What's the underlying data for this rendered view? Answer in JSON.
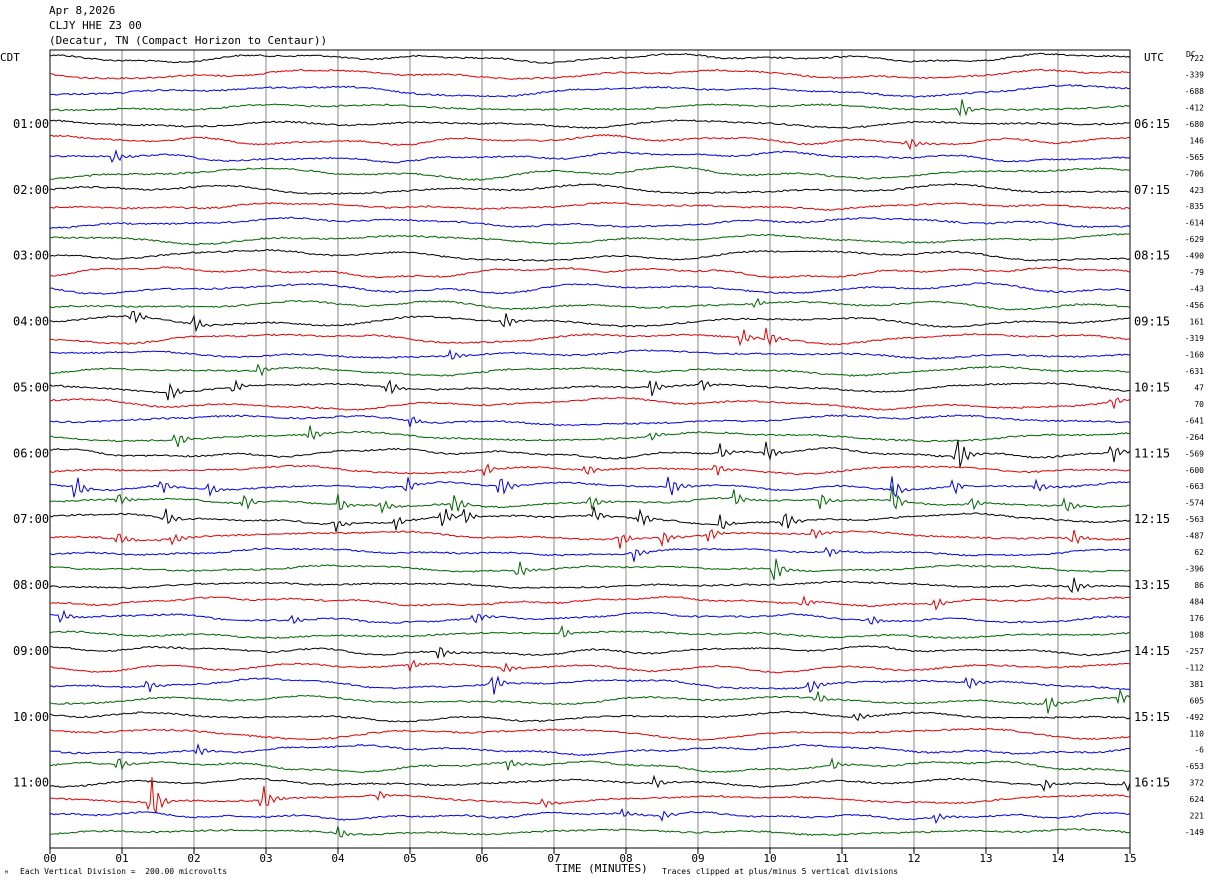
{
  "header": {
    "date": "Apr 8,2026",
    "station": "CLJY HHE Z3 00",
    "location": "(Decatur, TN (Compact Horizon to Centaur))"
  },
  "chart_data": {
    "type": "line",
    "title": "",
    "xlabel": "TIME (MINUTES)",
    "ylabel_left": "CDT",
    "ylabel_right": "UTC",
    "dc_label": "DC",
    "xlim": [
      0,
      15
    ],
    "x_ticks": [
      "00",
      "01",
      "02",
      "03",
      "04",
      "05",
      "06",
      "07",
      "08",
      "09",
      "10",
      "11",
      "12",
      "13",
      "14",
      "15"
    ],
    "trace_count": 48,
    "trace_colors": [
      "#000000",
      "#e00000",
      "#0000e0",
      "#006400"
    ],
    "left_time_labels": [
      {
        "trace": 4,
        "label": "01:00"
      },
      {
        "trace": 8,
        "label": "02:00"
      },
      {
        "trace": 12,
        "label": "03:00"
      },
      {
        "trace": 16,
        "label": "04:00"
      },
      {
        "trace": 20,
        "label": "05:00"
      },
      {
        "trace": 24,
        "label": "06:00"
      },
      {
        "trace": 28,
        "label": "07:00"
      },
      {
        "trace": 32,
        "label": "08:00"
      },
      {
        "trace": 36,
        "label": "09:00"
      },
      {
        "trace": 40,
        "label": "10:00"
      },
      {
        "trace": 44,
        "label": "11:00"
      }
    ],
    "right_time_labels": [
      {
        "trace": 4,
        "label": "06:15"
      },
      {
        "trace": 8,
        "label": "07:15"
      },
      {
        "trace": 12,
        "label": "08:15"
      },
      {
        "trace": 16,
        "label": "09:15"
      },
      {
        "trace": 20,
        "label": "10:15"
      },
      {
        "trace": 24,
        "label": "11:15"
      },
      {
        "trace": 28,
        "label": "12:15"
      },
      {
        "trace": 32,
        "label": "13:15"
      },
      {
        "trace": 36,
        "label": "14:15"
      },
      {
        "trace": 40,
        "label": "15:15"
      },
      {
        "trace": 44,
        "label": "16:15"
      }
    ],
    "dc_offsets": [
      "722",
      "-339",
      "-688",
      "-412",
      "-680",
      "146",
      "-565",
      "-706",
      "423",
      "-835",
      "-614",
      "-629",
      "-490",
      "-79",
      "-43",
      "-456",
      "161",
      "-319",
      "-160",
      "-631",
      "47",
      "70",
      "-641",
      "-264",
      "-569",
      "-600",
      "-663",
      "-574",
      "-563",
      "-487",
      "62",
      "-396",
      "86",
      "484",
      "176",
      "108",
      "-257",
      "-112",
      "381",
      "605",
      "-492",
      "110",
      "-6",
      "-653",
      "372",
      "624",
      "221",
      "-149"
    ],
    "events": [
      {
        "trace": 3,
        "t": 12.65,
        "amp": 1.2
      },
      {
        "trace": 5,
        "t": 11.93,
        "amp": 0.8
      },
      {
        "trace": 6,
        "t": 0.88,
        "amp": 0.9
      },
      {
        "trace": 15,
        "t": 9.8,
        "amp": 0.6
      },
      {
        "trace": 16,
        "t": 1.15,
        "amp": 1.0
      },
      {
        "trace": 16,
        "t": 2.0,
        "amp": 1.1
      },
      {
        "trace": 16,
        "t": 6.3,
        "amp": 1.1
      },
      {
        "trace": 17,
        "t": 9.6,
        "amp": 1.2
      },
      {
        "trace": 17,
        "t": 9.95,
        "amp": 1.2
      },
      {
        "trace": 18,
        "t": 5.55,
        "amp": 0.7
      },
      {
        "trace": 19,
        "t": 2.9,
        "amp": 0.8
      },
      {
        "trace": 20,
        "t": 1.65,
        "amp": 1.2
      },
      {
        "trace": 20,
        "t": 2.55,
        "amp": 0.9
      },
      {
        "trace": 20,
        "t": 4.7,
        "amp": 1.1
      },
      {
        "trace": 20,
        "t": 8.35,
        "amp": 1.2
      },
      {
        "trace": 20,
        "t": 9.05,
        "amp": 0.8
      },
      {
        "trace": 21,
        "t": 14.75,
        "amp": 0.8
      },
      {
        "trace": 22,
        "t": 5.0,
        "amp": 0.7
      },
      {
        "trace": 23,
        "t": 1.75,
        "amp": 1.0
      },
      {
        "trace": 23,
        "t": 3.6,
        "amp": 1.0
      },
      {
        "trace": 23,
        "t": 8.35,
        "amp": 0.6
      },
      {
        "trace": 24,
        "t": 9.3,
        "amp": 1.0
      },
      {
        "trace": 24,
        "t": 9.95,
        "amp": 1.2
      },
      {
        "trace": 24,
        "t": 12.6,
        "amp": 2.3
      },
      {
        "trace": 24,
        "t": 14.75,
        "amp": 1.3
      },
      {
        "trace": 25,
        "t": 6.05,
        "amp": 0.8
      },
      {
        "trace": 25,
        "t": 7.45,
        "amp": 0.7
      },
      {
        "trace": 25,
        "t": 9.25,
        "amp": 0.9
      },
      {
        "trace": 26,
        "t": 0.35,
        "amp": 1.5
      },
      {
        "trace": 26,
        "t": 1.55,
        "amp": 0.9
      },
      {
        "trace": 26,
        "t": 2.2,
        "amp": 0.9
      },
      {
        "trace": 26,
        "t": 4.95,
        "amp": 1.0
      },
      {
        "trace": 26,
        "t": 6.25,
        "amp": 1.3
      },
      {
        "trace": 26,
        "t": 8.6,
        "amp": 1.4
      },
      {
        "trace": 26,
        "t": 11.7,
        "amp": 1.5
      },
      {
        "trace": 26,
        "t": 12.55,
        "amp": 1.0
      },
      {
        "trace": 26,
        "t": 13.7,
        "amp": 0.7
      },
      {
        "trace": 27,
        "t": 0.95,
        "amp": 0.8
      },
      {
        "trace": 27,
        "t": 2.7,
        "amp": 1.0
      },
      {
        "trace": 27,
        "t": 4.0,
        "amp": 1.2
      },
      {
        "trace": 27,
        "t": 4.6,
        "amp": 0.8
      },
      {
        "trace": 27,
        "t": 5.6,
        "amp": 1.3
      },
      {
        "trace": 27,
        "t": 7.5,
        "amp": 1.0
      },
      {
        "trace": 27,
        "t": 9.5,
        "amp": 1.0
      },
      {
        "trace": 27,
        "t": 10.7,
        "amp": 1.0
      },
      {
        "trace": 27,
        "t": 11.7,
        "amp": 1.6
      },
      {
        "trace": 27,
        "t": 12.8,
        "amp": 0.8
      },
      {
        "trace": 27,
        "t": 14.1,
        "amp": 1.0
      },
      {
        "trace": 28,
        "t": 1.6,
        "amp": 1.2
      },
      {
        "trace": 28,
        "t": 3.95,
        "amp": 0.9
      },
      {
        "trace": 28,
        "t": 4.8,
        "amp": 0.9
      },
      {
        "trace": 28,
        "t": 5.45,
        "amp": 1.2
      },
      {
        "trace": 28,
        "t": 5.75,
        "amp": 1.0
      },
      {
        "trace": 28,
        "t": 7.55,
        "amp": 0.9
      },
      {
        "trace": 28,
        "t": 8.2,
        "amp": 1.0
      },
      {
        "trace": 28,
        "t": 9.3,
        "amp": 1.0
      },
      {
        "trace": 28,
        "t": 10.2,
        "amp": 1.3
      },
      {
        "trace": 29,
        "t": 0.95,
        "amp": 0.8
      },
      {
        "trace": 29,
        "t": 1.7,
        "amp": 0.7
      },
      {
        "trace": 29,
        "t": 7.9,
        "amp": 1.2
      },
      {
        "trace": 29,
        "t": 8.5,
        "amp": 0.9
      },
      {
        "trace": 29,
        "t": 9.15,
        "amp": 0.9
      },
      {
        "trace": 29,
        "t": 10.6,
        "amp": 0.8
      },
      {
        "trace": 29,
        "t": 14.2,
        "amp": 1.0
      },
      {
        "trace": 30,
        "t": 8.1,
        "amp": 0.9
      },
      {
        "trace": 30,
        "t": 10.8,
        "amp": 0.7
      },
      {
        "trace": 31,
        "t": 6.5,
        "amp": 1.1
      },
      {
        "trace": 31,
        "t": 10.05,
        "amp": 1.6
      },
      {
        "trace": 32,
        "t": 14.2,
        "amp": 1.2
      },
      {
        "trace": 33,
        "t": 10.45,
        "amp": 0.7
      },
      {
        "trace": 33,
        "t": 12.3,
        "amp": 0.7
      },
      {
        "trace": 34,
        "t": 0.15,
        "amp": 0.8
      },
      {
        "trace": 34,
        "t": 3.35,
        "amp": 0.6
      },
      {
        "trace": 34,
        "t": 5.9,
        "amp": 0.8
      },
      {
        "trace": 34,
        "t": 11.4,
        "amp": 0.6
      },
      {
        "trace": 35,
        "t": 7.1,
        "amp": 0.8
      },
      {
        "trace": 36,
        "t": 5.4,
        "amp": 0.9
      },
      {
        "trace": 37,
        "t": 5.0,
        "amp": 0.7
      },
      {
        "trace": 37,
        "t": 6.3,
        "amp": 0.7
      },
      {
        "trace": 38,
        "t": 1.35,
        "amp": 0.9
      },
      {
        "trace": 38,
        "t": 6.15,
        "amp": 1.4
      },
      {
        "trace": 38,
        "t": 10.55,
        "amp": 0.8
      },
      {
        "trace": 38,
        "t": 12.75,
        "amp": 0.9
      },
      {
        "trace": 39,
        "t": 10.65,
        "amp": 0.9
      },
      {
        "trace": 39,
        "t": 13.85,
        "amp": 1.2
      },
      {
        "trace": 39,
        "t": 14.85,
        "amp": 1.0
      },
      {
        "trace": 40,
        "t": 11.2,
        "amp": 0.6
      },
      {
        "trace": 42,
        "t": 2.05,
        "amp": 0.7
      },
      {
        "trace": 43,
        "t": 0.95,
        "amp": 0.9
      },
      {
        "trace": 43,
        "t": 6.35,
        "amp": 0.8
      },
      {
        "trace": 43,
        "t": 10.85,
        "amp": 0.7
      },
      {
        "trace": 44,
        "t": 8.4,
        "amp": 0.8
      },
      {
        "trace": 44,
        "t": 13.8,
        "amp": 0.8
      },
      {
        "trace": 44,
        "t": 14.95,
        "amp": 0.8
      },
      {
        "trace": 45,
        "t": 1.4,
        "amp": 3.0
      },
      {
        "trace": 45,
        "t": 2.95,
        "amp": 1.8
      },
      {
        "trace": 45,
        "t": 4.55,
        "amp": 0.6
      },
      {
        "trace": 45,
        "t": 6.85,
        "amp": 0.6
      },
      {
        "trace": 46,
        "t": 7.95,
        "amp": 0.6
      },
      {
        "trace": 46,
        "t": 8.5,
        "amp": 0.6
      },
      {
        "trace": 46,
        "t": 12.3,
        "amp": 0.6
      },
      {
        "trace": 47,
        "t": 4.0,
        "amp": 0.8
      }
    ]
  },
  "footer": {
    "logo_mark": "ᴹ",
    "scale_note": "Each Vertical Division =  200.00 microvolts",
    "clip_note": "Traces clipped at plus/minus 5 vertical divisions"
  }
}
